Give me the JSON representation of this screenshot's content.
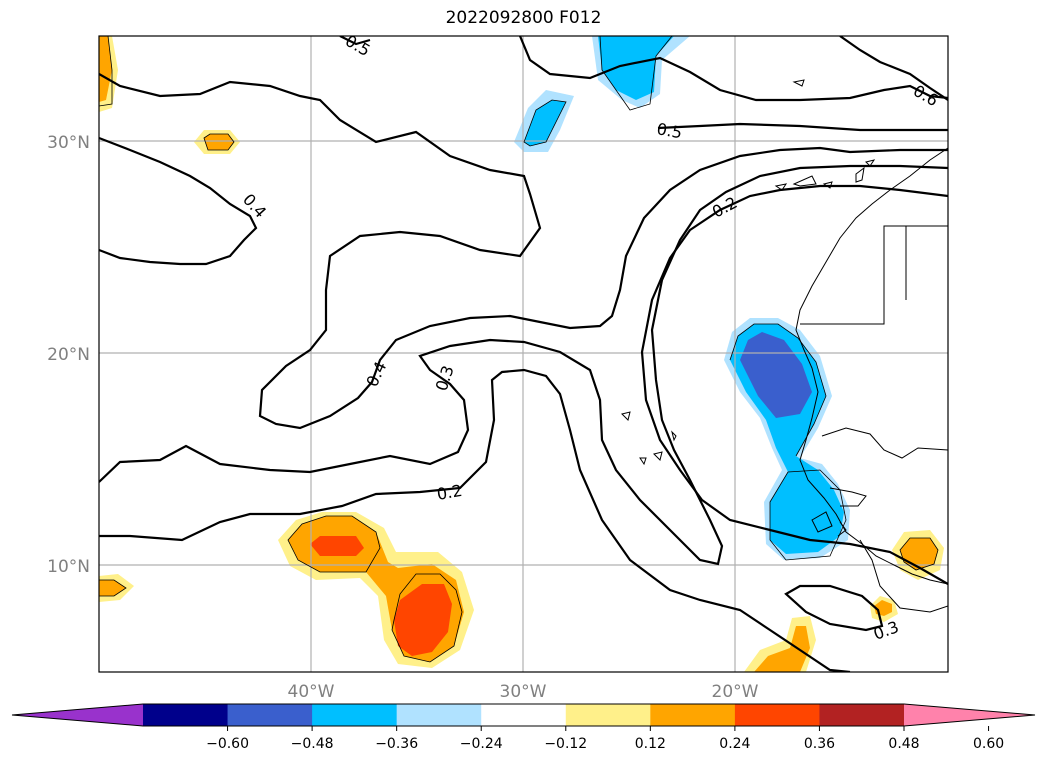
{
  "title": "2022092800 F012",
  "map": {
    "lat_labels": [
      "30°N",
      "20°N",
      "10°N"
    ],
    "lon_labels": [
      "40°W",
      "30°W",
      "20°W"
    ],
    "contour_labels": [
      "0.2",
      "0.2",
      "0.3",
      "0.3",
      "0.4",
      "0.4",
      "0.5",
      "0.6",
      "0.5"
    ]
  },
  "colorbar": {
    "ticks": [
      "−0.60",
      "−0.48",
      "−0.36",
      "−0.24",
      "−0.12",
      "0.12",
      "0.24",
      "0.36",
      "0.48",
      "0.60"
    ],
    "colors": [
      "#9932cc",
      "#00008b",
      "#3a5fcd",
      "#00bfff",
      "#b0e2ff",
      "#ffffff",
      "#fff08a",
      "#ffa500",
      "#ff4500",
      "#b22222",
      "#ff82ab"
    ]
  }
}
